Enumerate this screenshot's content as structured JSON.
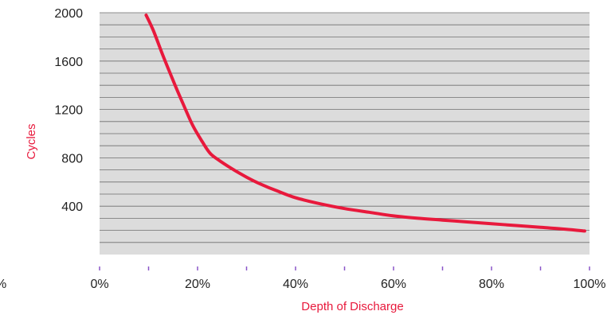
{
  "chart_data": {
    "type": "line",
    "xlabel": "Depth of Discharge",
    "ylabel": "Cycles",
    "xlim": [
      0,
      100
    ],
    "ylim": [
      0,
      2000
    ],
    "x_ticks": [
      0,
      20,
      40,
      60,
      80,
      100
    ],
    "x_tick_labels": [
      "0%",
      "20%",
      "40%",
      "60%",
      "80%",
      "100%"
    ],
    "x_minor_ticks": [
      10,
      30,
      50,
      70,
      90
    ],
    "y_ticks": [
      400,
      800,
      1200,
      1600,
      2000
    ],
    "y_tick_labels": [
      "400",
      "800",
      "1200",
      "1600",
      "2000"
    ],
    "y_gridline_step": 100,
    "left_edge_fragment": "%",
    "grid": true,
    "series": [
      {
        "x": [
          9.5,
          11,
          13,
          15,
          17,
          19,
          21,
          22.5,
          24,
          27,
          30,
          33,
          36,
          40,
          45,
          50,
          55,
          60,
          65,
          70,
          75,
          80,
          85,
          90,
          95,
          99
        ],
        "values": [
          1980,
          1850,
          1640,
          1440,
          1250,
          1070,
          930,
          840,
          790,
          710,
          640,
          580,
          530,
          470,
          420,
          380,
          350,
          320,
          300,
          285,
          270,
          255,
          240,
          225,
          210,
          195
        ]
      }
    ],
    "colors": {
      "line": "#e8193c",
      "plot_background": "#dcdcdc",
      "gridline": "#6e6e6e",
      "tick_mark": "#8a55c8",
      "axis_title": "#e8193c",
      "tick_label": "#222222"
    }
  }
}
